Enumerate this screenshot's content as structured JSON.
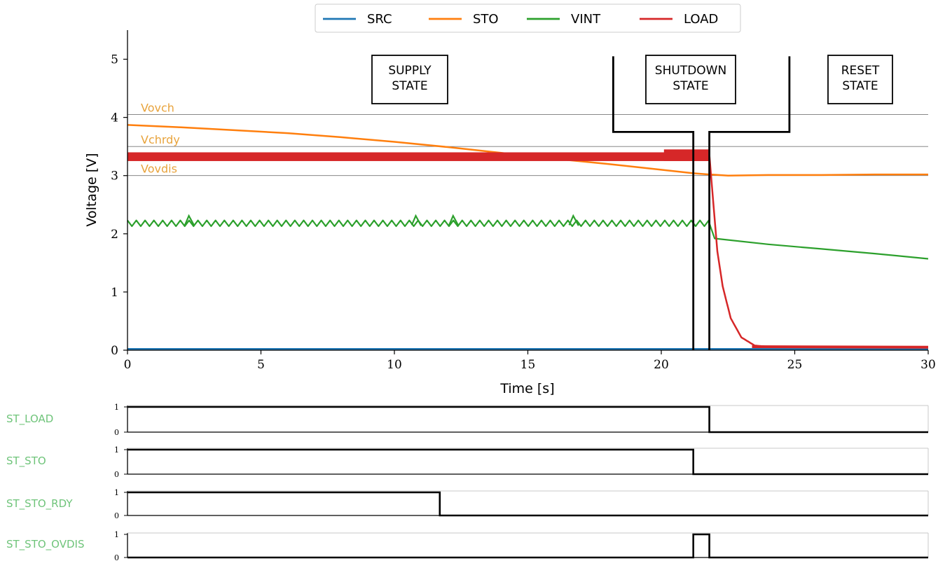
{
  "chart_data": [
    {
      "type": "line",
      "xlabel": "Time [s]",
      "ylabel": "Voltage [V]",
      "xlim": [
        0,
        30
      ],
      "ylim": [
        0,
        5.5
      ],
      "xticks": [
        "0",
        "5",
        "10",
        "15",
        "20",
        "25",
        "30"
      ],
      "yticks": [
        "0",
        "1",
        "2",
        "3",
        "4",
        "5"
      ],
      "grid": false,
      "legend_position": "top-center",
      "legend": [
        "SRC",
        "STO",
        "VINT",
        "LOAD"
      ],
      "colors": {
        "SRC": "#1f77b4",
        "STO": "#ff7f0e",
        "VINT": "#2ca02c",
        "LOAD": "#d62728",
        "threshold_label": "#e8a33c",
        "state_label": "#6fc47a"
      },
      "series": [
        {
          "name": "SRC",
          "x": [
            0,
            30
          ],
          "y": [
            0.02,
            0.02
          ]
        },
        {
          "name": "STO",
          "x": [
            0,
            2,
            4,
            6,
            8,
            10,
            12,
            14,
            16,
            18,
            20,
            21.2,
            21.8,
            22.5,
            24,
            26,
            28,
            30
          ],
          "y": [
            3.87,
            3.83,
            3.78,
            3.73,
            3.66,
            3.58,
            3.49,
            3.39,
            3.29,
            3.2,
            3.1,
            3.04,
            3.02,
            3.0,
            3.01,
            3.01,
            3.02,
            3.02
          ]
        },
        {
          "name": "VINT",
          "x": [
            0,
            21.8,
            22,
            24,
            26,
            28,
            30
          ],
          "y": [
            2.18,
            2.18,
            1.92,
            1.82,
            1.74,
            1.66,
            1.57
          ]
        },
        {
          "name": "LOAD",
          "x": [
            0,
            20,
            21.8,
            21.9,
            22.1,
            22.3,
            22.6,
            23.0,
            23.5,
            24,
            26,
            30
          ],
          "y": [
            3.32,
            3.34,
            3.36,
            2.8,
            1.7,
            1.1,
            0.55,
            0.22,
            0.08,
            0.06,
            0.05,
            0.05
          ]
        }
      ],
      "vint_spikes_x": [
        2.3,
        10.8,
        12.2,
        16.7
      ],
      "thresholds": [
        {
          "label": "Vovch",
          "y": 4.05
        },
        {
          "label": "Vchrdy",
          "y": 3.5
        },
        {
          "label": "Vovdis",
          "y": 3.0
        }
      ],
      "state_boxes": [
        {
          "line1": "SUPPLY",
          "line2": "STATE"
        },
        {
          "line1": "SHUTDOWN",
          "line2": "STATE"
        },
        {
          "line1": "RESET",
          "line2": "STATE"
        }
      ],
      "state_boundaries": {
        "shutdown_start": 21.2,
        "shutdown_end": 21.8,
        "bracket_left": 18.2,
        "bracket_right": 24.8
      }
    },
    {
      "type": "line",
      "name": "digital_states",
      "ylim": [
        0,
        1
      ],
      "yticks": [
        "0",
        "1"
      ],
      "signals": [
        {
          "label": "ST_LOAD",
          "x": [
            0,
            21.8,
            21.8,
            30
          ],
          "y": [
            1,
            1,
            0,
            0
          ]
        },
        {
          "label": "ST_STO",
          "x": [
            0,
            21.2,
            21.2,
            30
          ],
          "y": [
            1,
            1,
            0,
            0
          ]
        },
        {
          "label": "ST_STO_RDY",
          "x": [
            0,
            11.7,
            11.7,
            30
          ],
          "y": [
            1,
            1,
            0,
            0
          ]
        },
        {
          "label": "ST_STO_OVDIS",
          "x": [
            0,
            21.2,
            21.2,
            21.8,
            21.8,
            30
          ],
          "y": [
            0,
            0,
            1,
            1,
            0,
            0
          ]
        }
      ]
    }
  ]
}
